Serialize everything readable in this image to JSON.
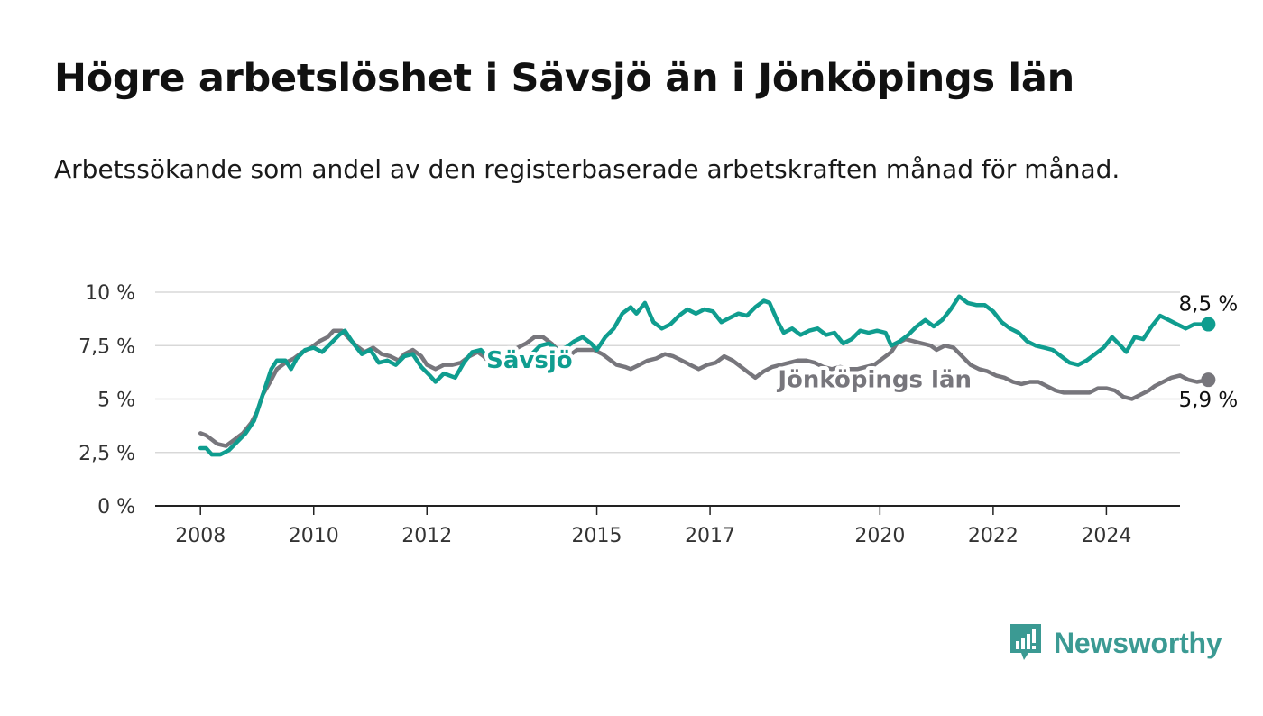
{
  "title": "Högre arbetslöshet i Sävsjö än i Jönköpings län",
  "subtitle": "Arbetssökande som andel av den registerbaserade arbetskraften månad för månad.",
  "brand": {
    "name": "Newsworthy",
    "icon": "newsworthy-logo-icon",
    "color": "#3b9a93"
  },
  "chart_data": {
    "type": "line",
    "title": "Högre arbetslöshet i Sävsjö än i Jönköpings län",
    "subtitle": "Arbetssökande som andel av den registerbaserade arbetskraften månad för månad.",
    "xlabel": "",
    "ylabel": "",
    "xlim": [
      2007.2,
      2025.3
    ],
    "ylim": [
      0,
      10
    ],
    "grid": true,
    "xticks": [
      {
        "value": 2008,
        "label": "2008"
      },
      {
        "value": 2010,
        "label": "2010"
      },
      {
        "value": 2012,
        "label": "2012"
      },
      {
        "value": 2015,
        "label": "2015"
      },
      {
        "value": 2017,
        "label": "2017"
      },
      {
        "value": 2020,
        "label": "2020"
      },
      {
        "value": 2022,
        "label": "2022"
      },
      {
        "value": 2024,
        "label": "2024"
      }
    ],
    "yticks": [
      {
        "value": 0,
        "label": "0 %"
      },
      {
        "value": 2.5,
        "label": "2,5 %"
      },
      {
        "value": 5,
        "label": "5 %"
      },
      {
        "value": 7.5,
        "label": "7,5 %"
      },
      {
        "value": 10,
        "label": "10 %"
      }
    ],
    "series": [
      {
        "name": "Jönköpings län",
        "label": "Jönköpings län",
        "color": "#77767c",
        "end_label": "5,9 %",
        "points": [
          [
            2008.0,
            3.4
          ],
          [
            2008.1,
            3.3
          ],
          [
            2008.2,
            3.1
          ],
          [
            2008.3,
            2.9
          ],
          [
            2008.45,
            2.8
          ],
          [
            2008.6,
            3.1
          ],
          [
            2008.75,
            3.4
          ],
          [
            2008.9,
            3.9
          ],
          [
            2009.0,
            4.4
          ],
          [
            2009.1,
            5.2
          ],
          [
            2009.25,
            5.9
          ],
          [
            2009.35,
            6.4
          ],
          [
            2009.5,
            6.7
          ],
          [
            2009.65,
            6.9
          ],
          [
            2009.8,
            7.2
          ],
          [
            2009.95,
            7.4
          ],
          [
            2010.1,
            7.7
          ],
          [
            2010.25,
            7.9
          ],
          [
            2010.35,
            8.2
          ],
          [
            2010.5,
            8.2
          ],
          [
            2010.6,
            7.9
          ],
          [
            2010.75,
            7.5
          ],
          [
            2010.9,
            7.2
          ],
          [
            2011.05,
            7.4
          ],
          [
            2011.2,
            7.1
          ],
          [
            2011.35,
            7.0
          ],
          [
            2011.5,
            6.8
          ],
          [
            2011.6,
            7.1
          ],
          [
            2011.75,
            7.3
          ],
          [
            2011.9,
            7.0
          ],
          [
            2012.0,
            6.6
          ],
          [
            2012.15,
            6.4
          ],
          [
            2012.3,
            6.6
          ],
          [
            2012.45,
            6.6
          ],
          [
            2012.6,
            6.7
          ],
          [
            2012.75,
            7.0
          ],
          [
            2012.9,
            7.2
          ],
          [
            2013.0,
            7.0
          ],
          [
            2013.15,
            6.6
          ],
          [
            2013.3,
            6.8
          ],
          [
            2013.45,
            7.1
          ],
          [
            2013.6,
            7.4
          ],
          [
            2013.75,
            7.6
          ],
          [
            2013.9,
            7.9
          ],
          [
            2014.05,
            7.9
          ],
          [
            2014.2,
            7.6
          ],
          [
            2014.35,
            7.2
          ],
          [
            2014.5,
            7.0
          ],
          [
            2014.65,
            7.3
          ],
          [
            2014.8,
            7.3
          ],
          [
            2014.95,
            7.3
          ],
          [
            2015.1,
            7.1
          ],
          [
            2015.25,
            6.8
          ],
          [
            2015.35,
            6.6
          ],
          [
            2015.5,
            6.5
          ],
          [
            2015.6,
            6.4
          ],
          [
            2015.75,
            6.6
          ],
          [
            2015.9,
            6.8
          ],
          [
            2016.05,
            6.9
          ],
          [
            2016.2,
            7.1
          ],
          [
            2016.35,
            7.0
          ],
          [
            2016.5,
            6.8
          ],
          [
            2016.65,
            6.6
          ],
          [
            2016.8,
            6.4
          ],
          [
            2016.95,
            6.6
          ],
          [
            2017.1,
            6.7
          ],
          [
            2017.25,
            7.0
          ],
          [
            2017.4,
            6.8
          ],
          [
            2017.55,
            6.5
          ],
          [
            2017.7,
            6.2
          ],
          [
            2017.8,
            6.0
          ],
          [
            2017.95,
            6.3
          ],
          [
            2018.1,
            6.5
          ],
          [
            2018.25,
            6.6
          ],
          [
            2018.4,
            6.7
          ],
          [
            2018.55,
            6.8
          ],
          [
            2018.7,
            6.8
          ],
          [
            2018.85,
            6.7
          ],
          [
            2019.0,
            6.5
          ],
          [
            2019.15,
            6.4
          ],
          [
            2019.3,
            6.5
          ],
          [
            2019.45,
            6.4
          ],
          [
            2019.6,
            6.4
          ],
          [
            2019.75,
            6.5
          ],
          [
            2019.9,
            6.6
          ],
          [
            2020.05,
            6.9
          ],
          [
            2020.2,
            7.2
          ],
          [
            2020.3,
            7.6
          ],
          [
            2020.45,
            7.8
          ],
          [
            2020.6,
            7.7
          ],
          [
            2020.75,
            7.6
          ],
          [
            2020.9,
            7.5
          ],
          [
            2021.0,
            7.3
          ],
          [
            2021.15,
            7.5
          ],
          [
            2021.3,
            7.4
          ],
          [
            2021.45,
            7.0
          ],
          [
            2021.6,
            6.6
          ],
          [
            2021.75,
            6.4
          ],
          [
            2021.9,
            6.3
          ],
          [
            2022.05,
            6.1
          ],
          [
            2022.2,
            6.0
          ],
          [
            2022.35,
            5.8
          ],
          [
            2022.5,
            5.7
          ],
          [
            2022.65,
            5.8
          ],
          [
            2022.8,
            5.8
          ],
          [
            2022.95,
            5.6
          ],
          [
            2023.1,
            5.4
          ],
          [
            2023.25,
            5.3
          ],
          [
            2023.4,
            5.3
          ],
          [
            2023.55,
            5.3
          ],
          [
            2023.7,
            5.3
          ],
          [
            2023.85,
            5.5
          ],
          [
            2024.0,
            5.5
          ],
          [
            2024.15,
            5.4
          ],
          [
            2024.3,
            5.1
          ],
          [
            2024.45,
            5.0
          ],
          [
            2024.6,
            5.2
          ],
          [
            2024.75,
            5.4
          ],
          [
            2024.85,
            5.6
          ],
          [
            2025.0,
            5.8
          ],
          [
            2025.15,
            6.0
          ],
          [
            2025.3,
            6.1
          ],
          [
            2025.45,
            5.9
          ],
          [
            2025.6,
            5.8
          ],
          [
            2025.8,
            5.9
          ]
        ]
      },
      {
        "name": "Sävsjö",
        "label": "Sävsjö",
        "color": "#0f9d8f",
        "end_label": "8,5 %",
        "points": [
          [
            2008.0,
            2.7
          ],
          [
            2008.1,
            2.7
          ],
          [
            2008.2,
            2.4
          ],
          [
            2008.35,
            2.4
          ],
          [
            2008.5,
            2.6
          ],
          [
            2008.65,
            3.0
          ],
          [
            2008.8,
            3.4
          ],
          [
            2008.95,
            4.0
          ],
          [
            2009.05,
            4.8
          ],
          [
            2009.15,
            5.6
          ],
          [
            2009.25,
            6.4
          ],
          [
            2009.35,
            6.8
          ],
          [
            2009.5,
            6.8
          ],
          [
            2009.6,
            6.4
          ],
          [
            2009.7,
            6.9
          ],
          [
            2009.85,
            7.3
          ],
          [
            2010.0,
            7.4
          ],
          [
            2010.15,
            7.2
          ],
          [
            2010.3,
            7.6
          ],
          [
            2010.45,
            8.0
          ],
          [
            2010.55,
            8.2
          ],
          [
            2010.7,
            7.6
          ],
          [
            2010.85,
            7.1
          ],
          [
            2011.0,
            7.3
          ],
          [
            2011.15,
            6.7
          ],
          [
            2011.3,
            6.8
          ],
          [
            2011.45,
            6.6
          ],
          [
            2011.6,
            7.0
          ],
          [
            2011.75,
            7.1
          ],
          [
            2011.9,
            6.5
          ],
          [
            2012.05,
            6.1
          ],
          [
            2012.15,
            5.8
          ],
          [
            2012.3,
            6.2
          ],
          [
            2012.5,
            6.0
          ],
          [
            2012.65,
            6.7
          ],
          [
            2012.8,
            7.2
          ],
          [
            2012.95,
            7.3
          ],
          [
            2013.1,
            6.9
          ],
          [
            2013.25,
            6.4
          ],
          [
            2013.4,
            6.6
          ],
          [
            2013.55,
            6.9
          ],
          [
            2013.7,
            6.8
          ],
          [
            2013.85,
            7.1
          ],
          [
            2014.0,
            7.5
          ],
          [
            2014.15,
            7.6
          ],
          [
            2014.3,
            7.3
          ],
          [
            2014.45,
            7.4
          ],
          [
            2014.6,
            7.7
          ],
          [
            2014.75,
            7.9
          ],
          [
            2014.9,
            7.6
          ],
          [
            2015.0,
            7.3
          ],
          [
            2015.15,
            7.9
          ],
          [
            2015.3,
            8.3
          ],
          [
            2015.45,
            9.0
          ],
          [
            2015.6,
            9.3
          ],
          [
            2015.7,
            9.0
          ],
          [
            2015.85,
            9.5
          ],
          [
            2016.0,
            8.6
          ],
          [
            2016.15,
            8.3
          ],
          [
            2016.3,
            8.5
          ],
          [
            2016.45,
            8.9
          ],
          [
            2016.6,
            9.2
          ],
          [
            2016.75,
            9.0
          ],
          [
            2016.9,
            9.2
          ],
          [
            2017.05,
            9.1
          ],
          [
            2017.2,
            8.6
          ],
          [
            2017.35,
            8.8
          ],
          [
            2017.5,
            9.0
          ],
          [
            2017.65,
            8.9
          ],
          [
            2017.8,
            9.3
          ],
          [
            2017.95,
            9.6
          ],
          [
            2018.05,
            9.5
          ],
          [
            2018.2,
            8.6
          ],
          [
            2018.3,
            8.1
          ],
          [
            2018.45,
            8.3
          ],
          [
            2018.6,
            8.0
          ],
          [
            2018.75,
            8.2
          ],
          [
            2018.9,
            8.3
          ],
          [
            2019.05,
            8.0
          ],
          [
            2019.2,
            8.1
          ],
          [
            2019.35,
            7.6
          ],
          [
            2019.5,
            7.8
          ],
          [
            2019.65,
            8.2
          ],
          [
            2019.8,
            8.1
          ],
          [
            2019.95,
            8.2
          ],
          [
            2020.1,
            8.1
          ],
          [
            2020.2,
            7.5
          ],
          [
            2020.35,
            7.7
          ],
          [
            2020.5,
            8.0
          ],
          [
            2020.65,
            8.4
          ],
          [
            2020.8,
            8.7
          ],
          [
            2020.95,
            8.4
          ],
          [
            2021.1,
            8.7
          ],
          [
            2021.25,
            9.2
          ],
          [
            2021.4,
            9.8
          ],
          [
            2021.55,
            9.5
          ],
          [
            2021.7,
            9.4
          ],
          [
            2021.85,
            9.4
          ],
          [
            2022.0,
            9.1
          ],
          [
            2022.15,
            8.6
          ],
          [
            2022.3,
            8.3
          ],
          [
            2022.45,
            8.1
          ],
          [
            2022.6,
            7.7
          ],
          [
            2022.75,
            7.5
          ],
          [
            2022.9,
            7.4
          ],
          [
            2023.05,
            7.3
          ],
          [
            2023.2,
            7.0
          ],
          [
            2023.35,
            6.7
          ],
          [
            2023.5,
            6.6
          ],
          [
            2023.65,
            6.8
          ],
          [
            2023.8,
            7.1
          ],
          [
            2023.95,
            7.4
          ],
          [
            2024.1,
            7.9
          ],
          [
            2024.25,
            7.5
          ],
          [
            2024.35,
            7.2
          ],
          [
            2024.5,
            7.9
          ],
          [
            2024.65,
            7.8
          ],
          [
            2024.8,
            8.4
          ],
          [
            2024.95,
            8.9
          ],
          [
            2025.1,
            8.7
          ],
          [
            2025.25,
            8.5
          ],
          [
            2025.4,
            8.3
          ],
          [
            2025.55,
            8.5
          ],
          [
            2025.8,
            8.5
          ]
        ]
      }
    ]
  }
}
